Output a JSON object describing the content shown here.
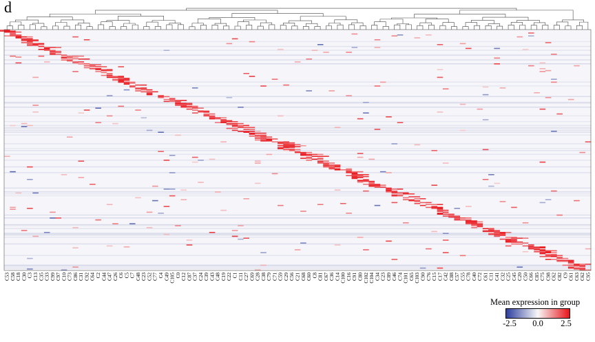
{
  "panel_label": "d",
  "chart_data": {
    "type": "heatmap",
    "title": "",
    "xlabel": "",
    "ylabel": "",
    "row_dendrogram": false,
    "column_dendrogram": true,
    "x_tick_labels": [
      "C53",
      "C58",
      "C18",
      "C30",
      "C3",
      "C13",
      "C35",
      "C33",
      "C99",
      "C97",
      "C10",
      "C73",
      "C86",
      "C31",
      "C92",
      "C64",
      "C2",
      "C44",
      "C47",
      "C26",
      "C6",
      "C5",
      "C7",
      "C48",
      "C23",
      "C52",
      "C77",
      "C4",
      "C49",
      "C105",
      "C0",
      "C12",
      "C87",
      "C37",
      "C24",
      "C39",
      "C43",
      "C48",
      "C19",
      "C22",
      "C1",
      "C11",
      "C27",
      "C69",
      "C28",
      "C38",
      "C79",
      "C71",
      "C59",
      "C29",
      "C56",
      "C21",
      "C68",
      "C60",
      "C8",
      "C81",
      "C67",
      "C36",
      "C14",
      "C100",
      "C16",
      "C91",
      "C80",
      "C102",
      "C104",
      "C34",
      "C23",
      "C89",
      "C46",
      "C74",
      "C101",
      "C65",
      "C103",
      "C90",
      "C76",
      "C15",
      "C17",
      "C42",
      "C88",
      "C57",
      "C55",
      "C78",
      "C40",
      "C72",
      "C61",
      "C11",
      "C41",
      "C32",
      "C25",
      "C45",
      "C20",
      "C50",
      "C66",
      "C85",
      "C75",
      "C98",
      "C62",
      "C82",
      "C9",
      "C61",
      "C63",
      "C62",
      "C95"
    ],
    "diagonal_blocks": {
      "description_free": true,
      "values": [
        2.5,
        2.5,
        2.2,
        2.0,
        2.3,
        2.4,
        2.1,
        2.5,
        2.3,
        2.2,
        2.4,
        2.0,
        2.5,
        2.2,
        2.3,
        2.1,
        2.4,
        2.2,
        2.5,
        2.3
      ]
    },
    "colorbar": {
      "title": "Mean expression in group",
      "min": -2.5,
      "max": 2.5,
      "ticks": [
        "-2.5",
        "0.0",
        "2.5"
      ],
      "colors": {
        "low": "#2d3f9e",
        "mid": "#f7f7f7",
        "high": "#e8151b"
      }
    },
    "grid": false,
    "legend_position": "bottom-right"
  }
}
